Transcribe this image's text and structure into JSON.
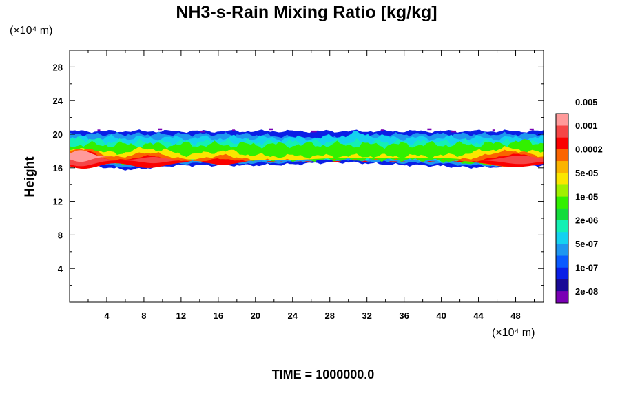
{
  "chart_data": {
    "type": "heatmap",
    "title": "NH3-s-Rain Mixing Ratio [kg/kg]",
    "xlabel": "",
    "ylabel": "Height",
    "x_unit_label": "(×10⁴ m)",
    "y_unit_label": "(×10⁴ m)",
    "xlim": [
      0,
      51
    ],
    "ylim": [
      0,
      30
    ],
    "x_ticks": [
      4,
      8,
      12,
      16,
      20,
      24,
      28,
      32,
      36,
      40,
      44,
      48
    ],
    "y_ticks": [
      4,
      8,
      12,
      16,
      20,
      24,
      28
    ],
    "x_tick_labels": [
      "4",
      "8",
      "12",
      "16",
      "20",
      "24",
      "28",
      "32",
      "36",
      "40",
      "44",
      "48"
    ],
    "y_tick_labels": [
      "4",
      "8",
      "12",
      "16",
      "20",
      "24",
      "28"
    ],
    "field_description": "Mixing ratio concentrated in a horizontal layer between about 15.5 and 20.5 (×10⁴ m) height across the whole domain; highest values near 16–18 at the left edge, 6–10, and 44–51.",
    "colorbar": {
      "colors": [
        "#7a00b4",
        "#1a0a96",
        "#0a1ee6",
        "#0a5aff",
        "#1e96f0",
        "#14d2f0",
        "#14f0b4",
        "#14dc3c",
        "#32f000",
        "#a0f000",
        "#fae600",
        "#fab400",
        "#fa6400",
        "#fa0000",
        "#f54646",
        "#ff9a9a"
      ],
      "labels": [
        "2e-08",
        "1e-07",
        "5e-07",
        "2e-06",
        "1e-05",
        "5e-05",
        "0.0002",
        "0.001",
        "0.005"
      ]
    },
    "time_label": "TIME = 1000000.0"
  }
}
